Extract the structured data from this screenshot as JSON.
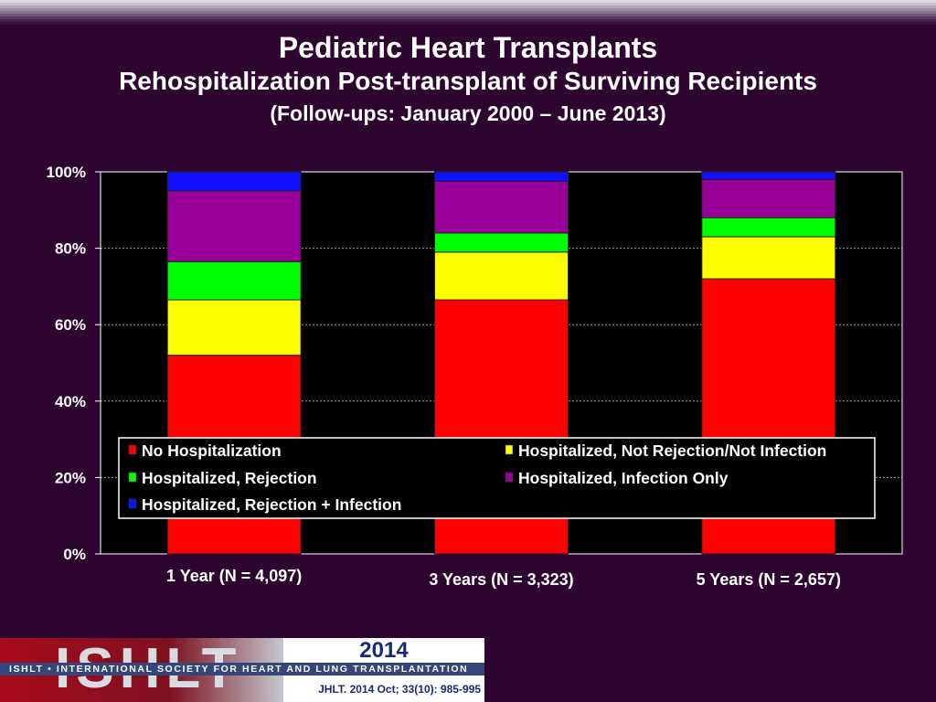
{
  "slide": {
    "title": "Pediatric Heart Transplants",
    "subtitle": "Rehospitalization Post-transplant of Surviving Recipients",
    "subtitle2": "(Follow-ups: January 2000 – June 2013)"
  },
  "footer": {
    "year": "2014",
    "logo_text": "ISHLT",
    "org_name": "ISHLT • INTERNATIONAL SOCIETY FOR HEART AND LUNG TRANSPLANTATION",
    "citation": "JHLT. 2014 Oct; 33(10): 985-995"
  },
  "chart_data": {
    "type": "bar",
    "stacked": true,
    "percent": true,
    "categories": [
      "1 Year (N = 4,097)",
      "3 Years (N = 3,323)",
      "5 Years (N = 2,657)"
    ],
    "series": [
      {
        "name": "No Hospitalization",
        "color": "#ff0000",
        "values": [
          52,
          66.5,
          72
        ]
      },
      {
        "name": "Hospitalized, Not Rejection/Not Infection",
        "color": "#ffff00",
        "values": [
          14.5,
          12.5,
          11
        ]
      },
      {
        "name": "Hospitalized, Rejection",
        "color": "#00ff00",
        "values": [
          10,
          5,
          5
        ]
      },
      {
        "name": "Hospitalized, Infection Only",
        "color": "#990099",
        "values": [
          18.5,
          13.5,
          10
        ]
      },
      {
        "name": "Hospitalized, Rejection + Infection",
        "color": "#1010ff",
        "values": [
          5,
          2.5,
          2
        ]
      }
    ],
    "ylim": [
      0,
      100
    ],
    "yticks": [
      "0%",
      "20%",
      "40%",
      "60%",
      "80%",
      "100%"
    ],
    "grid": true,
    "legend_position": "inside-bottom"
  }
}
